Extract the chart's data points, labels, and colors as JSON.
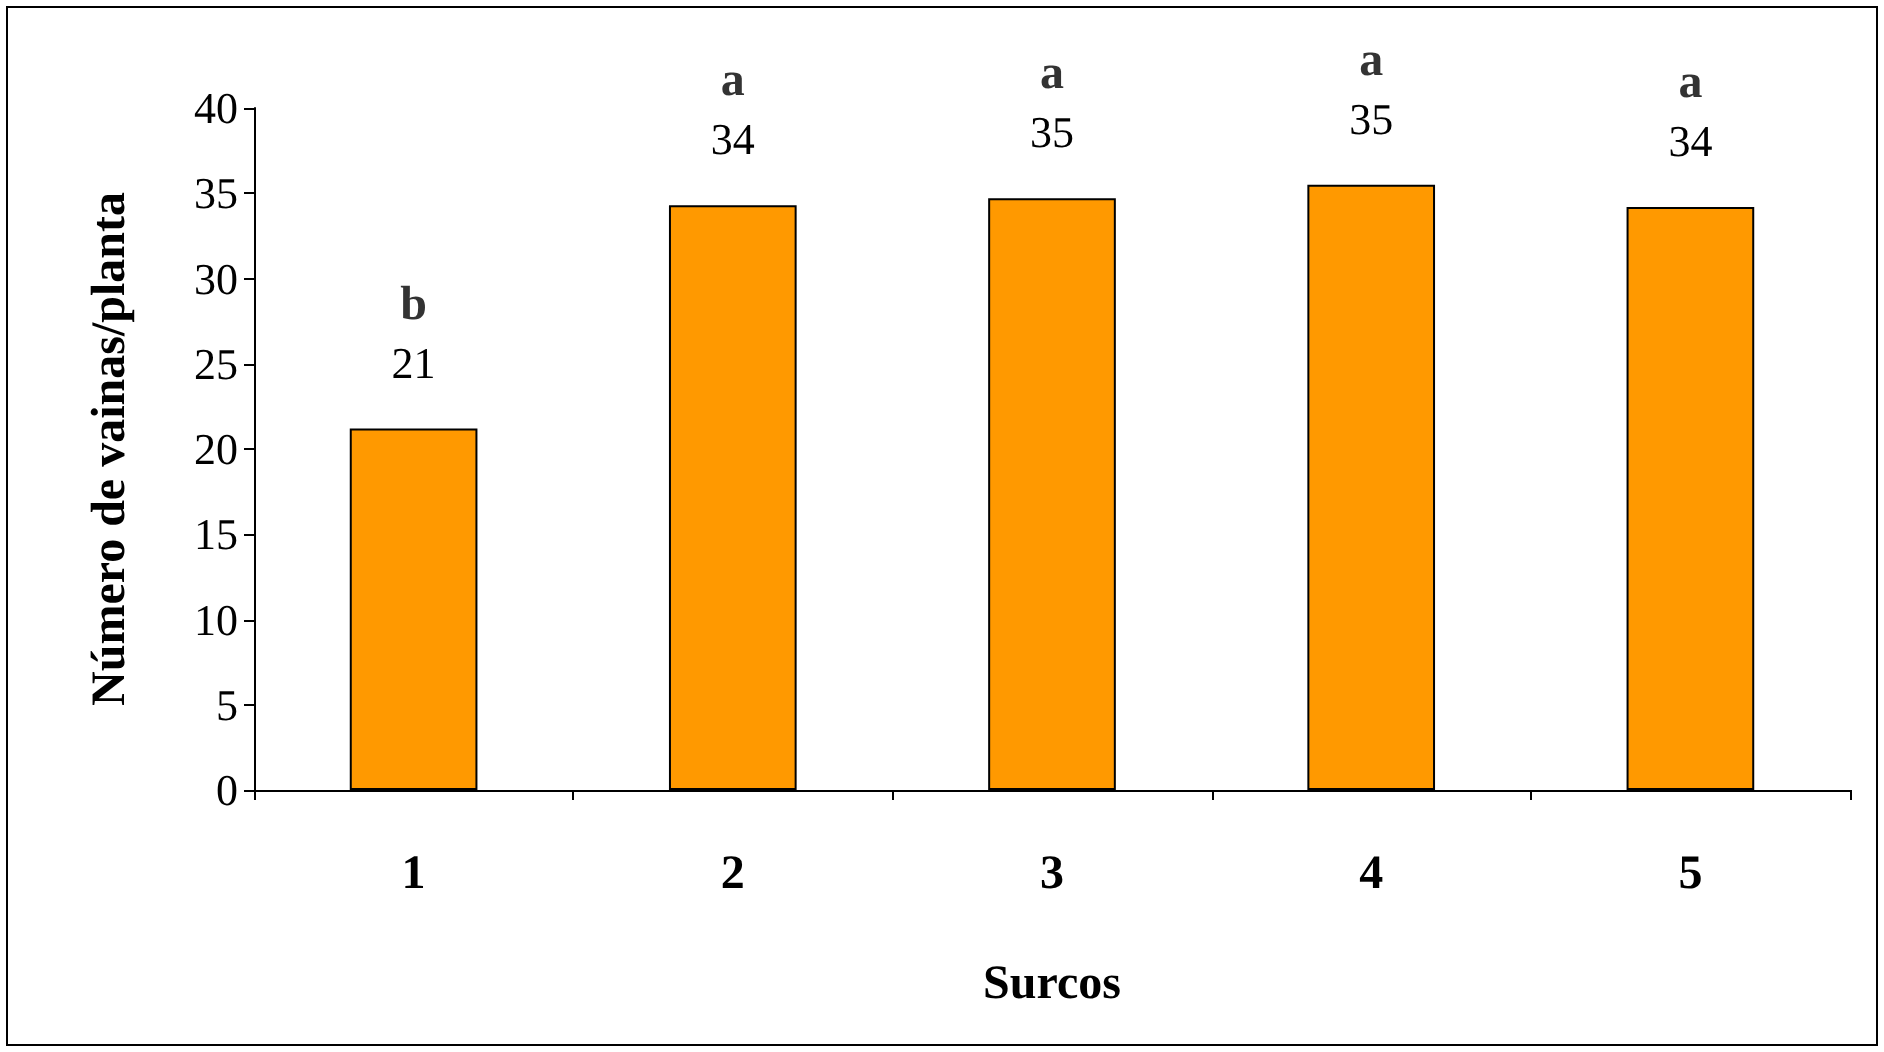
{
  "chart_data": {
    "type": "bar",
    "xlabel": "Surcos",
    "ylabel": "Número de vainas/planta",
    "categories": [
      "1",
      "2",
      "3",
      "4",
      "5"
    ],
    "values": [
      21.2,
      34.3,
      34.7,
      35.5,
      34.2
    ],
    "value_labels": [
      "21",
      "34",
      "35",
      "35",
      "34"
    ],
    "color": "#ff9900",
    "ylim": [
      0,
      40
    ],
    "yticks": [
      0,
      5,
      10,
      15,
      20,
      25,
      30,
      35,
      40
    ],
    "grid": false,
    "annotations": [
      {
        "text": "b",
        "x": "1",
        "y": 21.2
      },
      {
        "text": "a",
        "x": "2",
        "y": 34.3
      },
      {
        "text": "a",
        "x": "3",
        "y": 34.7
      },
      {
        "text": "a",
        "x": "4",
        "y": 35.5
      },
      {
        "text": "a",
        "x": "5",
        "y": 34.2
      }
    ]
  }
}
